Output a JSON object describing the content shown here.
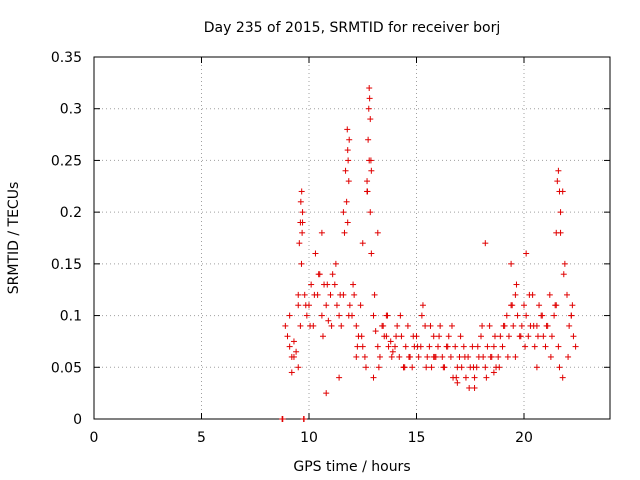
{
  "chart_data": {
    "type": "scatter",
    "title": "Day 235 of 2015, SRMTID for receiver borj",
    "xlabel": "GPS time / hours",
    "ylabel": "SRMTID / TECUs",
    "xlim": [
      0,
      24
    ],
    "ylim": [
      0,
      0.35
    ],
    "xticks": [
      0,
      5,
      10,
      15,
      20
    ],
    "xtick_labels": [
      "0",
      "5",
      "10",
      "15",
      "20"
    ],
    "yticks": [
      0,
      0.05,
      0.1,
      0.15,
      0.2,
      0.25,
      0.3,
      0.35
    ],
    "ytick_labels": [
      "0",
      "0.05",
      "0.1",
      "0.15",
      "0.2",
      "0.25",
      "0.3",
      "0.35"
    ],
    "grid": true,
    "marker": "+",
    "color": "#e00000",
    "series": [
      {
        "name": "SRMTID",
        "x": [
          8.75,
          8.78,
          9.75,
          9.77,
          8.9,
          9.0,
          9.1,
          9.2,
          9.3,
          9.4,
          9.5,
          9.6,
          9.65,
          9.7,
          9.8,
          9.9,
          10.0,
          10.1,
          10.2,
          10.3,
          10.4,
          10.5,
          10.6,
          10.7,
          10.8,
          10.9,
          11.0,
          11.1,
          11.2,
          11.3,
          11.4,
          11.5,
          11.6,
          11.7,
          11.8,
          11.9,
          12.0,
          12.1,
          12.2,
          12.3,
          12.4,
          12.5,
          12.6,
          12.7,
          12.8,
          12.9,
          13.0,
          13.1,
          13.2,
          13.3,
          13.4,
          13.5,
          13.6,
          13.7,
          13.8,
          13.9,
          14.0,
          14.1,
          14.2,
          14.3,
          14.4,
          14.5,
          14.6,
          14.7,
          14.8,
          14.9,
          15.0,
          15.1,
          15.2,
          15.3,
          15.4,
          15.5,
          15.6,
          15.7,
          15.8,
          15.9,
          16.0,
          16.1,
          16.2,
          16.3,
          16.4,
          16.5,
          16.6,
          16.7,
          16.8,
          16.9,
          17.0,
          17.1,
          17.2,
          17.3,
          17.4,
          17.5,
          17.6,
          17.7,
          17.8,
          17.9,
          18.0,
          18.1,
          18.2,
          18.3,
          18.4,
          18.5,
          18.6,
          18.7,
          18.8,
          18.9,
          19.0,
          19.1,
          19.2,
          19.3,
          19.4,
          19.5,
          19.6,
          19.7,
          19.8,
          19.9,
          20.0,
          20.1,
          20.2,
          20.3,
          20.4,
          20.5,
          20.6,
          20.7,
          20.8,
          20.9,
          21.0,
          21.1,
          21.2,
          21.3,
          21.4,
          21.5,
          21.6,
          21.7,
          21.8,
          21.9,
          22.0,
          22.1,
          22.2,
          22.3,
          22.4,
          9.1,
          9.3,
          9.5,
          9.7,
          9.85,
          10.05,
          10.25,
          10.45,
          10.65,
          10.85,
          11.05,
          11.25,
          11.45,
          11.65,
          11.85,
          12.05,
          12.25,
          12.45,
          12.65,
          12.85,
          13.05,
          13.25,
          13.45,
          13.65,
          13.85,
          14.05,
          14.25,
          14.45,
          14.65,
          14.85,
          15.05,
          15.25,
          15.45,
          15.65,
          15.85,
          16.05,
          16.25,
          16.45,
          16.65,
          16.85,
          17.05,
          17.25,
          17.45,
          17.65,
          17.85,
          18.05,
          18.25,
          18.45,
          18.65,
          18.85,
          19.05,
          19.25,
          19.45,
          19.65,
          19.85,
          20.05,
          20.25,
          20.45,
          20.65,
          20.85,
          21.05,
          21.25,
          21.45,
          21.65,
          21.85,
          22.05,
          22.25,
          9.55,
          9.6,
          9.62,
          9.66,
          9.68,
          11.75,
          11.78,
          11.8,
          11.82,
          11.85,
          11.87,
          12.7,
          12.72,
          12.75,
          12.78,
          12.8,
          12.82,
          12.85,
          12.88,
          12.9,
          21.5,
          21.55,
          21.6,
          21.65,
          21.7,
          10.6,
          11.6,
          12.5,
          13.2,
          18.2,
          19.4,
          20.1,
          9.2,
          9.5,
          10.8,
          11.4,
          12.2,
          13.0,
          13.6,
          14.4,
          15.8,
          16.9,
          17.7,
          18.6,
          19.6,
          20.6,
          21.8,
          22.2
        ],
        "y": [
          0.0,
          0.0,
          0.0,
          0.0,
          0.09,
          0.08,
          0.07,
          0.06,
          0.075,
          0.065,
          0.11,
          0.09,
          0.15,
          0.2,
          0.12,
          0.1,
          0.11,
          0.13,
          0.09,
          0.16,
          0.12,
          0.14,
          0.1,
          0.13,
          0.11,
          0.095,
          0.12,
          0.14,
          0.13,
          0.11,
          0.1,
          0.09,
          0.12,
          0.24,
          0.19,
          0.11,
          0.1,
          0.12,
          0.09,
          0.08,
          0.11,
          0.07,
          0.06,
          0.22,
          0.25,
          0.16,
          0.1,
          0.085,
          0.07,
          0.06,
          0.09,
          0.08,
          0.1,
          0.07,
          0.075,
          0.065,
          0.07,
          0.09,
          0.06,
          0.08,
          0.05,
          0.07,
          0.09,
          0.06,
          0.05,
          0.07,
          0.08,
          0.06,
          0.07,
          0.11,
          0.09,
          0.06,
          0.07,
          0.05,
          0.08,
          0.06,
          0.07,
          0.09,
          0.06,
          0.05,
          0.07,
          0.08,
          0.06,
          0.04,
          0.07,
          0.05,
          0.06,
          0.05,
          0.07,
          0.04,
          0.06,
          0.05,
          0.07,
          0.04,
          0.05,
          0.06,
          0.08,
          0.06,
          0.05,
          0.07,
          0.09,
          0.06,
          0.07,
          0.05,
          0.06,
          0.08,
          0.07,
          0.09,
          0.1,
          0.08,
          0.11,
          0.09,
          0.12,
          0.1,
          0.08,
          0.09,
          0.11,
          0.1,
          0.08,
          0.09,
          0.12,
          0.07,
          0.09,
          0.11,
          0.1,
          0.08,
          0.07,
          0.09,
          0.12,
          0.08,
          0.1,
          0.11,
          0.07,
          0.18,
          0.22,
          0.15,
          0.12,
          0.09,
          0.1,
          0.08,
          0.07,
          0.1,
          0.06,
          0.05,
          0.19,
          0.11,
          0.09,
          0.12,
          0.14,
          0.08,
          0.13,
          0.09,
          0.15,
          0.12,
          0.18,
          0.1,
          0.13,
          0.07,
          0.08,
          0.05,
          0.2,
          0.12,
          0.05,
          0.09,
          0.1,
          0.06,
          0.08,
          0.1,
          0.05,
          0.06,
          0.08,
          0.07,
          0.1,
          0.05,
          0.09,
          0.06,
          0.08,
          0.05,
          0.07,
          0.09,
          0.04,
          0.08,
          0.06,
          0.03,
          0.05,
          0.07,
          0.09,
          0.04,
          0.06,
          0.08,
          0.05,
          0.09,
          0.06,
          0.11,
          0.13,
          0.08,
          0.07,
          0.12,
          0.09,
          0.08,
          0.1,
          0.09,
          0.06,
          0.11,
          0.05,
          0.14,
          0.06,
          0.11,
          0.17,
          0.19,
          0.21,
          0.22,
          0.18,
          0.21,
          0.28,
          0.26,
          0.25,
          0.23,
          0.27,
          0.23,
          0.22,
          0.27,
          0.3,
          0.32,
          0.31,
          0.29,
          0.25,
          0.24,
          0.18,
          0.23,
          0.24,
          0.22,
          0.2,
          0.18,
          0.2,
          0.17,
          0.18,
          0.17,
          0.15,
          0.16,
          0.045,
          0.12,
          0.025,
          0.04,
          0.06,
          0.04,
          0.08,
          0.05,
          0.06,
          0.035,
          0.03,
          0.045,
          0.06,
          0.05,
          0.04,
          0.1
        ]
      }
    ]
  }
}
